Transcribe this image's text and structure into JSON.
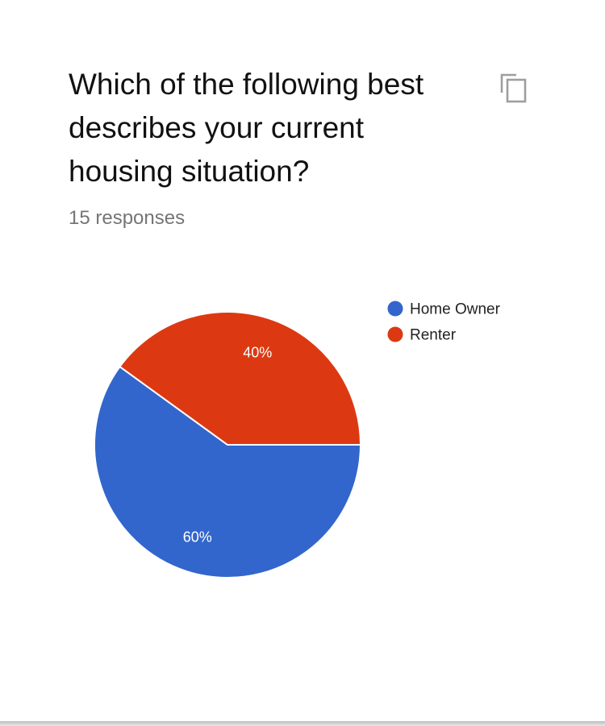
{
  "question": {
    "title": "Which of the following best describes your current housing situation?",
    "response_count": "15 responses"
  },
  "icons": {
    "copy": "copy-icon"
  },
  "colors": {
    "home_owner": "#3366cc",
    "renter": "#dc3912",
    "text_muted": "#757575"
  },
  "chart_data": {
    "type": "pie",
    "categories": [
      "Home Owner",
      "Renter"
    ],
    "values": [
      60,
      40
    ],
    "labels": [
      "60%",
      "40%"
    ],
    "colors": [
      "#3366cc",
      "#dc3912"
    ],
    "legend": "right",
    "title": ""
  }
}
